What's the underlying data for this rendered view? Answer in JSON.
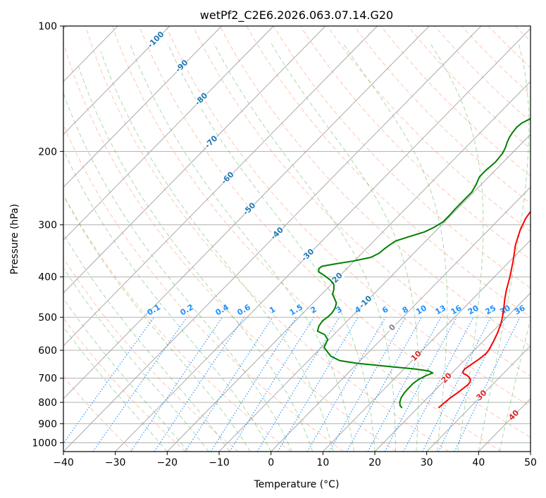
{
  "chart_data": {
    "type": "line",
    "title": "wetPf2_C2E6.2026.063.07.14.G20",
    "xlabel": "Temperature (°C)",
    "ylabel": "Pressure (hPa)",
    "xlim": [
      -40,
      50
    ],
    "ylim": [
      1050,
      100
    ],
    "x_ticks": [
      "-40",
      "-30",
      "-20",
      "-10",
      "0",
      "10",
      "20",
      "30",
      "40",
      "50"
    ],
    "y_ticks": [
      "100",
      "200",
      "300",
      "400",
      "500",
      "600",
      "700",
      "800",
      "900",
      "1000"
    ],
    "colors": {
      "temperature": "#ff0000",
      "dewpoint": "#008000",
      "isotherm": "#1f77b4",
      "dry_adiabat": "#ff7f50",
      "moist_adiabat": "#2ca02c",
      "mixing_ratio": "#1e90ff",
      "warm_isotherm": "#d62728"
    },
    "series": [
      {
        "name": "Temperature",
        "points": [
          [
            24,
            825
          ],
          [
            24.2,
            800
          ],
          [
            24.4,
            780
          ],
          [
            24.8,
            760
          ],
          [
            25.1,
            740
          ],
          [
            25.3,
            725
          ],
          [
            25.2,
            715
          ],
          [
            24.8,
            705
          ],
          [
            24,
            695
          ],
          [
            23.2,
            688
          ],
          [
            22.3,
            682
          ],
          [
            21.9,
            676
          ],
          [
            21.7,
            665
          ],
          [
            22.1,
            650
          ],
          [
            22.6,
            630
          ],
          [
            22.9,
            610
          ],
          [
            22.8,
            600
          ],
          [
            22.4,
            585
          ],
          [
            22,
            570
          ],
          [
            21.2,
            545
          ],
          [
            20.2,
            520
          ],
          [
            19.2,
            500
          ],
          [
            17.7,
            475
          ],
          [
            16.2,
            452
          ],
          [
            14.8,
            430
          ],
          [
            13,
            400
          ],
          [
            10.5,
            365
          ],
          [
            8,
            335
          ],
          [
            6.2,
            310
          ],
          [
            5,
            290
          ],
          [
            4,
            262
          ],
          [
            3.2,
            238
          ],
          [
            2.6,
            218
          ],
          [
            2.3,
            203
          ],
          [
            2.5,
            195
          ],
          [
            3.2,
            186
          ],
          [
            3.7,
            178
          ],
          [
            3.9,
            170
          ],
          [
            3.9,
            163
          ],
          [
            3.9,
            155
          ],
          [
            4.3,
            148
          ],
          [
            5.4,
            142
          ],
          [
            6.8,
            137
          ],
          [
            8.5,
            132
          ],
          [
            10.5,
            126
          ],
          [
            11.8,
            121
          ],
          [
            12.8,
            116
          ],
          [
            13.1,
            112
          ],
          [
            12.9,
            109
          ],
          [
            12.5,
            105
          ],
          [
            12.3,
            100
          ]
        ]
      },
      {
        "name": "Dewpoint",
        "points": [
          [
            17,
            825
          ],
          [
            16.2,
            815
          ],
          [
            15.5,
            800
          ],
          [
            14.9,
            780
          ],
          [
            14.6,
            760
          ],
          [
            14.5,
            740
          ],
          [
            14.5,
            720
          ],
          [
            14.8,
            705
          ],
          [
            15.5,
            690
          ],
          [
            16.3,
            680
          ],
          [
            15,
            672
          ],
          [
            12,
            665
          ],
          [
            6,
            655
          ],
          [
            0,
            645
          ],
          [
            -4,
            635
          ],
          [
            -6.5,
            620
          ],
          [
            -8,
            605
          ],
          [
            -9.5,
            590
          ],
          [
            -9.8,
            580
          ],
          [
            -10.3,
            565
          ],
          [
            -11.8,
            550
          ],
          [
            -13.8,
            540
          ],
          [
            -14.5,
            525
          ],
          [
            -14.8,
            510
          ],
          [
            -14.5,
            498
          ],
          [
            -14.5,
            488
          ],
          [
            -14.8,
            475
          ],
          [
            -15.5,
            462
          ],
          [
            -16.8,
            450
          ],
          [
            -17.9,
            440
          ],
          [
            -18.6,
            428
          ],
          [
            -19.5,
            417
          ],
          [
            -21,
            407
          ],
          [
            -23,
            397
          ],
          [
            -24.8,
            389
          ],
          [
            -25.4,
            382
          ],
          [
            -25.2,
            377
          ],
          [
            -23,
            372
          ],
          [
            -20,
            366
          ],
          [
            -17.5,
            359
          ],
          [
            -16.7,
            351
          ],
          [
            -16.5,
            343
          ],
          [
            -16.2,
            335
          ],
          [
            -15.8,
            328
          ],
          [
            -14,
            320
          ],
          [
            -12,
            312
          ],
          [
            -11,
            304
          ],
          [
            -10.3,
            295
          ],
          [
            -10.3,
            285
          ],
          [
            -10.4,
            275
          ],
          [
            -10.4,
            263
          ],
          [
            -10.4,
            250
          ],
          [
            -11,
            240
          ],
          [
            -11.8,
            230
          ],
          [
            -11.8,
            222
          ],
          [
            -11.5,
            212
          ],
          [
            -11.8,
            202
          ],
          [
            -12.3,
            196
          ],
          [
            -13,
            190
          ],
          [
            -13.5,
            185
          ],
          [
            -13.8,
            180
          ],
          [
            -14,
            175
          ],
          [
            -13.8,
            171
          ],
          [
            -13,
            167
          ],
          [
            -11.8,
            164
          ],
          [
            -10.3,
            160
          ],
          [
            -8.5,
            156
          ],
          [
            -7,
            152
          ],
          [
            -7,
            147
          ],
          [
            -7.2,
            142
          ],
          [
            -7.3,
            137
          ],
          [
            -7.4,
            132
          ],
          [
            -7.2,
            127
          ],
          [
            -6.8,
            123
          ],
          [
            -5.8,
            119
          ],
          [
            -4.8,
            116
          ],
          [
            -3.8,
            113
          ],
          [
            -2.7,
            110
          ],
          [
            -1.8,
            107
          ],
          [
            -1.2,
            103
          ],
          [
            -0.8,
            100
          ]
        ]
      }
    ],
    "isotherm_labels": [
      "-100",
      "-90",
      "-80",
      "-70",
      "-60",
      "-50",
      "-40",
      "-30",
      "-20",
      "-10",
      "0",
      "10",
      "20",
      "30",
      "40"
    ],
    "mixing_ratio_labels": [
      "0.1",
      "0.2",
      "0.4",
      "0.6",
      "1",
      "1.5",
      "2",
      "3",
      "4",
      "6",
      "8",
      "10",
      "13",
      "16",
      "20",
      "25",
      "30",
      "36"
    ]
  }
}
